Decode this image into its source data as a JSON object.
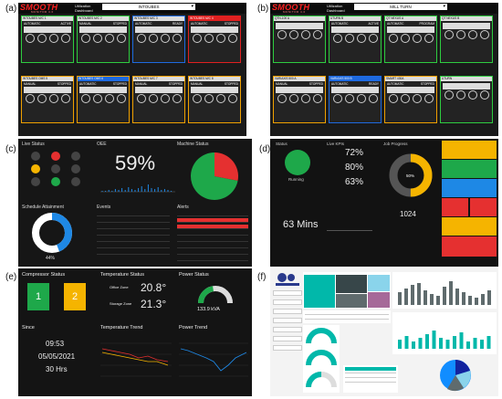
{
  "letters": {
    "a": "(a)",
    "b": "(b)",
    "c": "(c)",
    "d": "(d)",
    "e": "(e)",
    "f": "(f)"
  },
  "panel_a": {
    "logo": "SMOOTH",
    "logo_sub": "MONITOR 4.0",
    "util_label": "Utilization Dashboard",
    "dropdown_value": "INTOUBES",
    "cards": [
      {
        "title": "INTOUBES M/C 1",
        "state_left": "AUTOMATIC",
        "state_right": "ACTIVE",
        "color": "#2ecc40",
        "header_color": "#dddddd"
      },
      {
        "title": "INTOUBES M/C 2",
        "state_left": "MANUAL",
        "state_right": "STOPPED",
        "color": "#2ecc40",
        "header_color": "#dddddd"
      },
      {
        "title": "INTOUBES M/C 3",
        "state_left": "AUTOMATIC",
        "state_right": "READY",
        "color": "#1e6ae0",
        "header_color": "#dddddd"
      },
      {
        "title": "INTOUBES M/C 4",
        "state_left": "AUTOMATIC",
        "state_right": "STOPPED",
        "color": "#e02020",
        "header_color": "#e02020"
      },
      {
        "title": "INTOUBES OMS 5",
        "state_left": "MANUAL",
        "state_right": "STOPPED",
        "color": "#f0a000",
        "header_color": "#dddddd"
      },
      {
        "title": "INTOUBES OMS 6",
        "state_left": "AUTOMATIC",
        "state_right": "STOPPED",
        "color": "#f0a000",
        "header_color": "#1e6ae0"
      },
      {
        "title": "INTOUBES M/C 7",
        "state_left": "MANUAL",
        "state_right": "STOPPED",
        "color": "#f0a000",
        "header_color": "#dddddd"
      },
      {
        "title": "INTOUBES M/C 8",
        "state_left": "MANUAL",
        "state_right": "STOPPED",
        "color": "#f0a000",
        "header_color": "#dddddd"
      }
    ]
  },
  "panel_b": {
    "logo": "SMOOTH",
    "logo_sub": "MONITOR 4.0",
    "util_label": "Utilization Dashboard",
    "dropdown_value": "MILL TURN",
    "cards": [
      {
        "title": "QTN-100 A",
        "state_left": "",
        "state_right": "",
        "color": "#2ecc40",
        "header_color": "#dddddd"
      },
      {
        "title": "UTURN B",
        "state_left": "AUTOMATIC",
        "state_right": "ACTIVE",
        "color": "#2ecc40",
        "header_color": "#dddddd"
      },
      {
        "title": "QT NEXUS A",
        "state_left": "AUTOMATIC",
        "state_right": "PROGRAM",
        "color": "#2ecc40",
        "header_color": "#dddddd"
      },
      {
        "title": "QT NEXUS B",
        "state_left": "",
        "state_right": "",
        "color": "#2ecc40",
        "header_color": "#dddddd"
      },
      {
        "title": "VARIAXIS 500 A",
        "state_left": "MANUAL",
        "state_right": "STOPPED",
        "color": "#f0a000",
        "header_color": "#dddddd"
      },
      {
        "title": "VARIAXIS 500 B",
        "state_left": "AUTOMATIC",
        "state_right": "READY",
        "color": "#1e6ae0",
        "header_color": "#1e6ae0"
      },
      {
        "title": "SMART 430A",
        "state_left": "AUTOMATIC",
        "state_right": "STOPPED",
        "color": "#f0a000",
        "header_color": "#dddddd"
      },
      {
        "title": "UTURN",
        "state_left": "",
        "state_right": "",
        "color": "#2ecc40",
        "header_color": "#dddddd"
      }
    ]
  },
  "panel_c": {
    "live_status": "Live Status",
    "oee_label": "OEE",
    "oee_value": "59%",
    "machine_status": "Machine Status",
    "schedule": "Schedule Attainment",
    "schedule_pct": "44%",
    "events": "Events",
    "alerts": "Alerts",
    "status_pie": {
      "green": 0.72,
      "red": 0.28,
      "green_color": "#1ea84a",
      "red_color": "#e53030"
    },
    "donut": {
      "filled": 0.44,
      "fill_color": "#1e88e5",
      "rest_color": "#ffffff"
    }
  },
  "panel_d": {
    "status": "Status",
    "running": "Running",
    "live_kpis": "Live KPIs",
    "kpi1": "72%",
    "kpi2": "80%",
    "kpi3": "63%",
    "job_progress": "Job Progress",
    "job_pct": "50%",
    "time_big": "63 Mins",
    "count_big": "1024",
    "donut": {
      "filled": 0.5,
      "fill_color": "#f5b400",
      "rest_color": "#555555"
    }
  },
  "panel_e": {
    "compressor_status": "Compressor Status",
    "c1": "1",
    "c2": "2",
    "temperature_status": "Temperature Status",
    "office_zone": "Office Zone",
    "office_temp": "20.8°",
    "storage_zone": "Storage Zone",
    "storage_temp": "21.3°",
    "power_status": "Power Status",
    "power_value": "133.9 kVA",
    "power_fraction": 0.45,
    "since": "Since",
    "since_time": "09:53",
    "since_date": "05/05/2021",
    "since_hrs": "30 Hrs",
    "temperature_trend": "Temperature Trend",
    "power_trend": "Power Trend"
  }
}
